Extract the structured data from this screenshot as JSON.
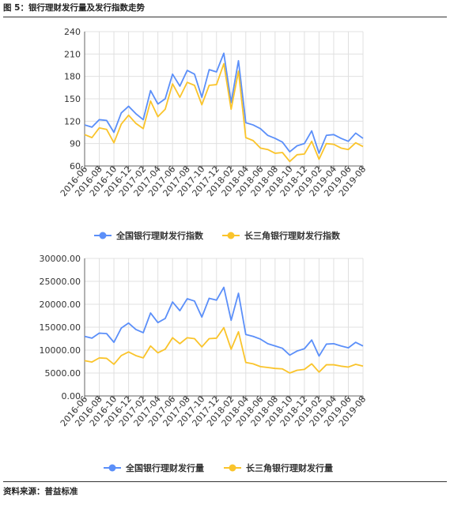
{
  "figure_title": "图 5：银行理财发行量及发行指数走势",
  "source_note": "资料来源：普益标准",
  "colors": {
    "series1": "#5b8ff9",
    "series2": "#fac42b",
    "grid": "#e0e0e0",
    "axis": "#666666"
  },
  "chart_data": [
    {
      "type": "line",
      "title": "",
      "xlabel": "",
      "ylabel": "",
      "ylim": [
        60,
        240
      ],
      "yticks": [
        60,
        90,
        120,
        150,
        180,
        210,
        240
      ],
      "ytick_labels": [
        "60",
        "90",
        "120",
        "150",
        "180",
        "210",
        "240"
      ],
      "grid": true,
      "legend_position": "bottom",
      "x": [
        "2016-06",
        "2016-07",
        "2016-08",
        "2016-09",
        "2016-10",
        "2016-11",
        "2016-12",
        "2017-01",
        "2017-02",
        "2017-03",
        "2017-04",
        "2017-05",
        "2017-06",
        "2017-07",
        "2017-08",
        "2017-09",
        "2017-10",
        "2017-11",
        "2017-12",
        "2018-01",
        "2018-02",
        "2018-03",
        "2018-04",
        "2018-05",
        "2018-06",
        "2018-07",
        "2018-08",
        "2018-09",
        "2018-10",
        "2018-11",
        "2018-12",
        "2019-01",
        "2019-02",
        "2019-03",
        "2019-04",
        "2019-05",
        "2019-06",
        "2019-07",
        "2019-08"
      ],
      "xtick_labels": [
        "2016-06",
        "2016-08",
        "2016-10",
        "2016-12",
        "2017-02",
        "2017-04",
        "2017-06",
        "2017-08",
        "2017-10",
        "2017-12",
        "2018-02",
        "2018-04",
        "2018-06",
        "2018-08",
        "2018-10",
        "2018-12",
        "2019-02",
        "2019-04",
        "2019-06",
        "2019-08"
      ],
      "series": [
        {
          "name": "全国银行理财发行指数",
          "values": [
            115,
            112,
            122,
            121,
            105,
            131,
            140,
            130,
            122,
            161,
            143,
            150,
            183,
            167,
            188,
            183,
            152,
            189,
            186,
            211,
            145,
            201,
            118,
            115,
            110,
            101,
            97,
            92,
            79,
            87,
            90,
            107,
            77,
            101,
            102,
            97,
            93,
            104,
            97
          ]
        },
        {
          "name": "长三角银行理财发行指数",
          "values": [
            102,
            98,
            111,
            109,
            91,
            116,
            128,
            117,
            110,
            147,
            126,
            136,
            170,
            152,
            172,
            168,
            142,
            168,
            169,
            197,
            136,
            187,
            98,
            94,
            84,
            82,
            77,
            78,
            66,
            75,
            76,
            93,
            69,
            90,
            89,
            84,
            82,
            91,
            86
          ]
        }
      ]
    },
    {
      "type": "line",
      "title": "",
      "xlabel": "",
      "ylabel": "",
      "ylim": [
        0,
        30000
      ],
      "yticks": [
        0,
        5000,
        10000,
        15000,
        20000,
        25000,
        30000
      ],
      "ytick_labels": [
        "0.00",
        "5000.00",
        "10000.00",
        "15000.00",
        "20000.00",
        "25000.00",
        "30000.00"
      ],
      "grid": true,
      "legend_position": "bottom",
      "x": [
        "2016-06",
        "2016-07",
        "2016-08",
        "2016-09",
        "2016-10",
        "2016-11",
        "2016-12",
        "2017-01",
        "2017-02",
        "2017-03",
        "2017-04",
        "2017-05",
        "2017-06",
        "2017-07",
        "2017-08",
        "2017-09",
        "2017-10",
        "2017-11",
        "2017-12",
        "2018-01",
        "2018-02",
        "2018-03",
        "2018-04",
        "2018-05",
        "2018-06",
        "2018-07",
        "2018-08",
        "2018-09",
        "2018-10",
        "2018-11",
        "2018-12",
        "2019-01",
        "2019-02",
        "2019-03",
        "2019-04",
        "2019-05",
        "2019-06",
        "2019-07",
        "2019-08"
      ],
      "xtick_labels": [
        "2016-06",
        "2016-08",
        "2016-10",
        "2016-12",
        "2017-02",
        "2017-04",
        "2017-06",
        "2017-08",
        "2017-10",
        "2017-12",
        "2018-02",
        "2018-04",
        "2018-06",
        "2018-08",
        "2018-10",
        "2018-12",
        "2019-02",
        "2019-04",
        "2019-06",
        "2019-08"
      ],
      "series": [
        {
          "name": "全国银行理财发行量",
          "values": [
            13000,
            12600,
            13700,
            13600,
            11700,
            14800,
            15900,
            14500,
            13800,
            18100,
            16000,
            16900,
            20500,
            18600,
            21200,
            20700,
            17200,
            21300,
            20900,
            23700,
            16500,
            22400,
            13400,
            13000,
            12400,
            11400,
            10900,
            10400,
            8900,
            9800,
            10300,
            12200,
            8700,
            11300,
            11400,
            10900,
            10500,
            11700,
            10900
          ]
        },
        {
          "name": "长三角银行理财发行量",
          "values": [
            7700,
            7400,
            8300,
            8200,
            6900,
            8800,
            9600,
            8800,
            8300,
            10900,
            9400,
            10200,
            12700,
            11400,
            12700,
            12500,
            10700,
            12500,
            12600,
            14900,
            10200,
            14000,
            7300,
            7000,
            6400,
            6200,
            6000,
            5900,
            5000,
            5600,
            5800,
            7000,
            5200,
            6800,
            6800,
            6500,
            6300,
            6900,
            6500
          ]
        }
      ]
    }
  ]
}
